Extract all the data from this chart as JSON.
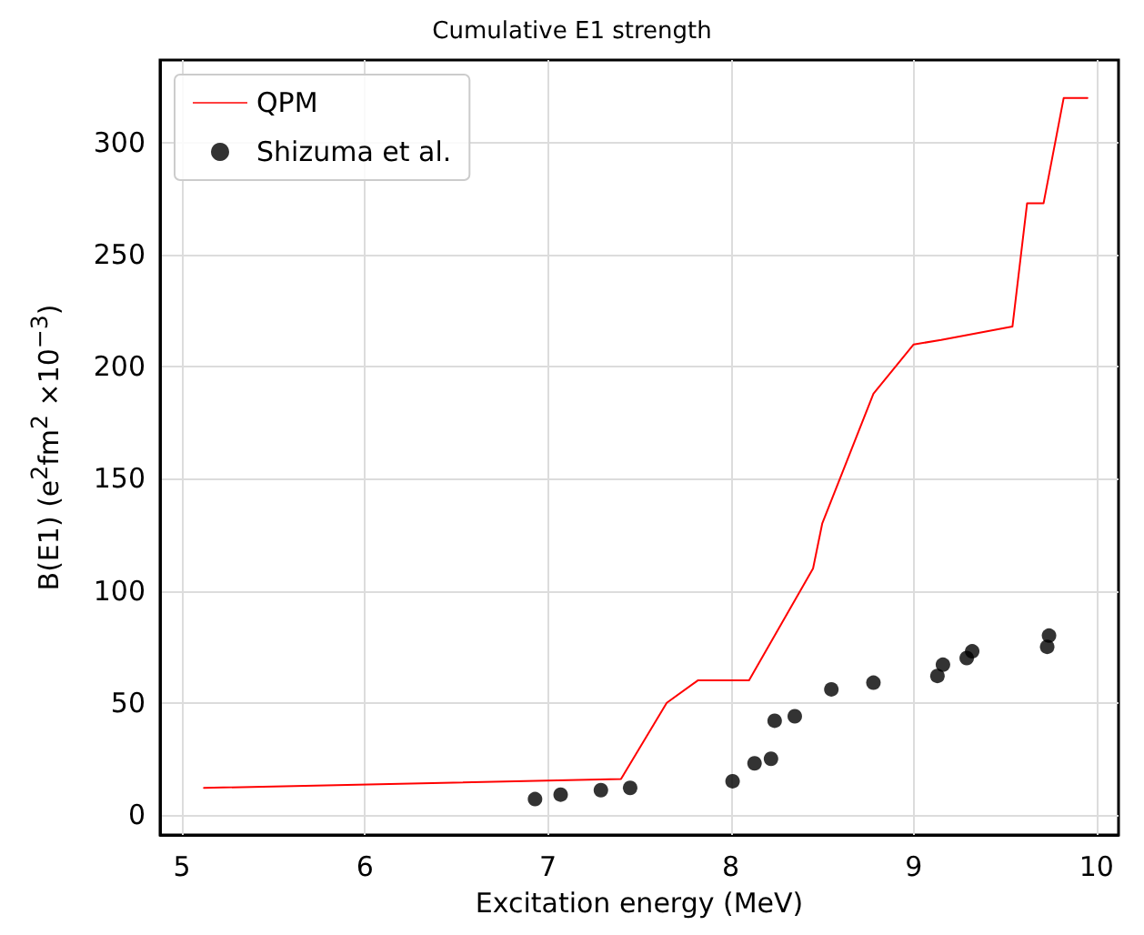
{
  "chart_data": {
    "type": "line",
    "title": "Cumulative E1 strength",
    "xlabel": "Excitation energy (MeV)",
    "ylabel": "B(E1) (e$^{2}$fm$^{2}$ ×10$^{−3}$)",
    "xlim": [
      4.88,
      10.12
    ],
    "xticks": [
      5,
      6,
      7,
      8,
      9,
      10
    ],
    "ylim": [
      -9,
      337
    ],
    "yticks": [
      0,
      50,
      100,
      150,
      200,
      250,
      300
    ],
    "grid": true,
    "legend": "top left",
    "series": [
      {
        "name": "QPM",
        "color": "#ff0000",
        "marker": "none",
        "x": [
          5.12,
          7.4,
          7.65,
          7.82,
          8.1,
          8.45,
          8.5,
          8.78,
          9.0,
          9.15,
          9.54,
          9.62,
          9.71,
          9.82,
          9.95
        ],
        "values": [
          12,
          16,
          50,
          60,
          60,
          110,
          130,
          188,
          210,
          212,
          218,
          273,
          273,
          320,
          320
        ]
      },
      {
        "name": "Shizuma et al.",
        "type": "scatter",
        "color": "#000000",
        "marker": "circle",
        "x": [
          6.93,
          7.07,
          7.29,
          7.45,
          8.01,
          8.13,
          8.22,
          8.24,
          8.35,
          8.55,
          8.78,
          9.13,
          9.16,
          9.29,
          9.32,
          9.73,
          9.74
        ],
        "values": [
          7,
          9,
          11,
          12,
          15,
          23,
          25,
          42,
          44,
          56,
          59,
          62,
          67,
          70,
          73,
          75,
          80
        ]
      }
    ]
  }
}
